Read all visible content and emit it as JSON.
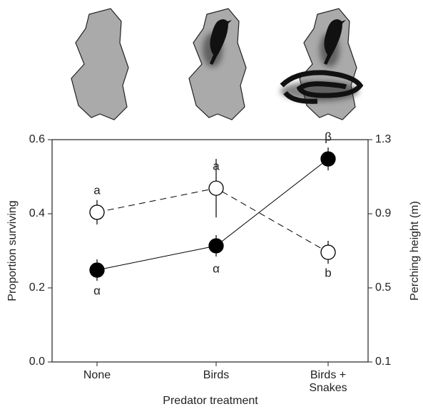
{
  "chart_data": {
    "type": "line",
    "xlabel": "Predator treatment",
    "ylabel": "Proportion surviving",
    "y2label": "Perching height (m)",
    "categories": [
      "None",
      "Birds",
      "Birds + Snakes"
    ],
    "ylim": [
      0,
      0.6
    ],
    "yticks": [
      {
        "value": 0,
        "label": "0.0"
      },
      0.2,
      0.4,
      0.6
    ],
    "y2lim": [
      0.1,
      1.3
    ],
    "y2ticks": [
      0.1,
      0.5,
      0.9,
      1.3
    ],
    "series": [
      {
        "color": "#000000",
        "marker": "open",
        "dashed": true,
        "values": [
          0.404,
          0.469,
          0.296
        ],
        "errors": [
          0.033,
          0.079,
          0.031
        ],
        "letters": [
          "a",
          "a",
          "b"
        ]
      },
      {
        "color": "#000000",
        "marker": "filled",
        "dashed": false,
        "axis": "y2",
        "values": [
          0.596,
          0.727,
          1.196
        ],
        "errors": [
          0.058,
          0.058,
          0.062
        ],
        "letters": [
          "α",
          "α",
          "β"
        ]
      }
    ]
  }
}
